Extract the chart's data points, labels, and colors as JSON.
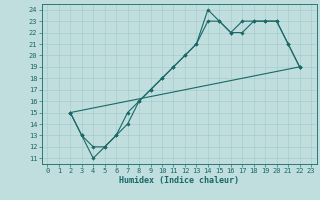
{
  "title": "",
  "xlabel": "Humidex (Indice chaleur)",
  "ylabel": "",
  "bg_color": "#c0dede",
  "line_color": "#1a6868",
  "grid_color": "#a8cccc",
  "spine_color": "#2a7878",
  "xlim": [
    -0.5,
    23.5
  ],
  "ylim": [
    10.5,
    24.5
  ],
  "xticks": [
    0,
    1,
    2,
    3,
    4,
    5,
    6,
    7,
    8,
    9,
    10,
    11,
    12,
    13,
    14,
    15,
    16,
    17,
    18,
    19,
    20,
    21,
    22,
    23
  ],
  "yticks": [
    11,
    12,
    13,
    14,
    15,
    16,
    17,
    18,
    19,
    20,
    21,
    22,
    23,
    24
  ],
  "line1_x": [
    2,
    3,
    4,
    5,
    6,
    7,
    8,
    9,
    10,
    11,
    12,
    13,
    14,
    15,
    16,
    17,
    18,
    19,
    20,
    21,
    22
  ],
  "line1_y": [
    15,
    13,
    11,
    12,
    13,
    15,
    16,
    17,
    18,
    19,
    20,
    21,
    24,
    23,
    22,
    23,
    23,
    23,
    23,
    21,
    19
  ],
  "line2_x": [
    2,
    3,
    4,
    5,
    6,
    7,
    8,
    9,
    10,
    11,
    12,
    13,
    14,
    15,
    16,
    17,
    18,
    19,
    20,
    21,
    22
  ],
  "line2_y": [
    15,
    13,
    12,
    12,
    13,
    14,
    16,
    17,
    18,
    19,
    20,
    21,
    23,
    23,
    22,
    22,
    23,
    23,
    23,
    21,
    19
  ],
  "line3_x": [
    2,
    22
  ],
  "line3_y": [
    15,
    19
  ],
  "tick_fontsize": 5.0,
  "xlabel_fontsize": 6.0,
  "marker": "D",
  "markersize": 1.8,
  "linewidth": 0.8
}
